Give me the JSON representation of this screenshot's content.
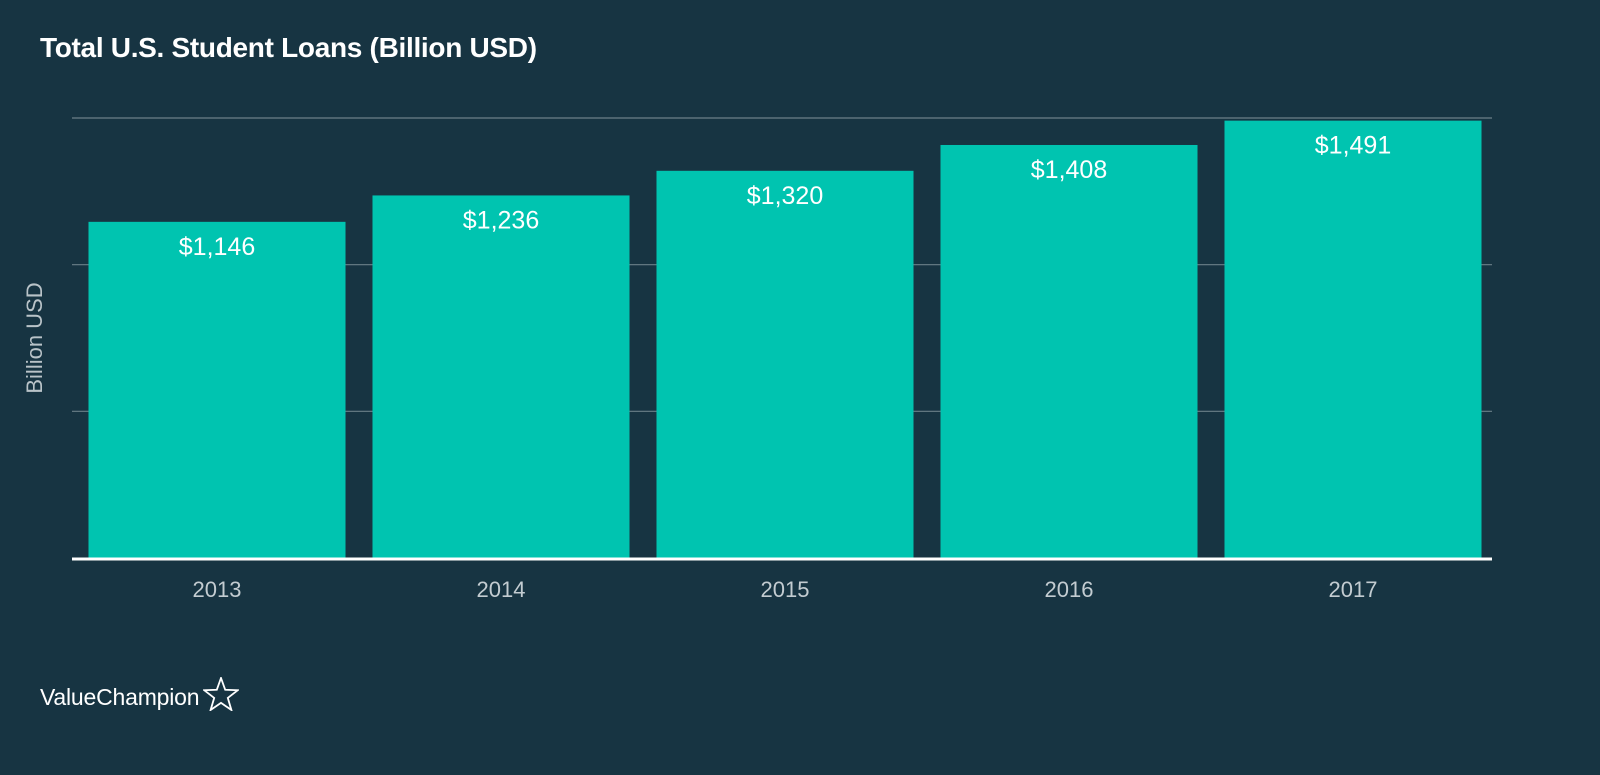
{
  "chart_data": {
    "type": "bar",
    "title": "Total U.S. Student Loans (Billion USD)",
    "ylabel": "Billion USD",
    "xlabel": "",
    "categories": [
      "2013",
      "2014",
      "2015",
      "2016",
      "2017"
    ],
    "values": [
      1146,
      1236,
      1320,
      1408,
      1491
    ],
    "data_labels": [
      "$1,146",
      "$1,236",
      "$1,320",
      "$1,408",
      "$1,491"
    ],
    "ylim": [
      0,
      1500
    ],
    "grid": true,
    "bar_color": "#00c4b0",
    "grid_color": "#6b7f88",
    "axis_color": "#ffffff"
  },
  "branding": {
    "logo_text": "ValueChampion",
    "logo_icon": "star-outline-icon"
  }
}
